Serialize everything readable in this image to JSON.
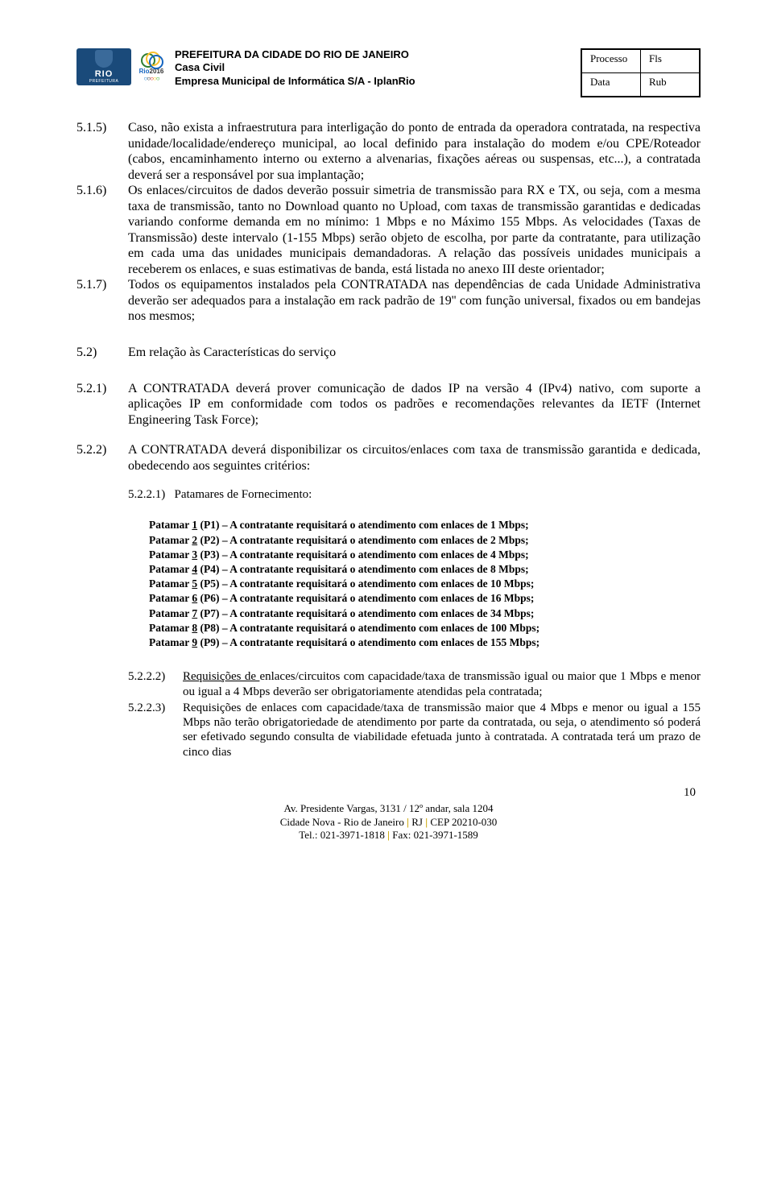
{
  "header": {
    "org1": "PREFEITURA DA CIDADE DO RIO DE JANEIRO",
    "org2": "Casa Civil",
    "org3": "Empresa Municipal de Informática S/A - IplanRio",
    "stamp": {
      "processo": "Processo",
      "fls": "Fls",
      "data": "Data",
      "rub": "Rub"
    },
    "logo_rio": {
      "text": "RIO",
      "sub": "PREFEITURA",
      "bg": "#1a4a7a"
    },
    "logo_olymp": {
      "year": "2016"
    }
  },
  "clauses": {
    "c515_num": "5.1.5)",
    "c515": "Caso, não exista a infraestrutura para interligação do ponto de entrada da operadora contratada, na respectiva unidade/localidade/endereço municipal, ao local definido para instalação do modem e/ou CPE/Roteador (cabos, encaminhamento interno ou externo a alvenarias, fixações aéreas ou suspensas, etc...), a contratada deverá ser a responsável por sua implantação;",
    "c516_num": "5.1.6)",
    "c516": "Os enlaces/circuitos de dados deverão possuir simetria de transmissão para RX e TX, ou seja, com a mesma taxa de transmissão, tanto no Download quanto no Upload, com taxas de transmissão garantidas e dedicadas variando conforme demanda em no mínimo: 1 Mbps e no Máximo 155 Mbps. As velocidades (Taxas de Transmissão) deste intervalo (1-155 Mbps) serão objeto de escolha, por parte da contratante, para utilização em cada uma das unidades municipais demandadoras. A relação das possíveis unidades municipais a receberem os enlaces, e suas estimativas de banda, está listada no anexo III deste orientador;",
    "c517_num": "5.1.7)",
    "c517": "Todos os equipamentos instalados pela CONTRATADA nas dependências de cada Unidade Administrativa deverão ser adequados para a instalação em rack padrão de 19'' com função universal, fixados ou em bandejas nos mesmos;"
  },
  "section52": {
    "num": "5.2)",
    "title": " Em relação às Características do serviço"
  },
  "sub521": {
    "num": "5.2.1)",
    "text": "A CONTRATADA deverá prover comunicação de dados IP na versão 4 (IPv4) nativo, com suporte a aplicações IP em conformidade com todos os padrões e recomendações relevantes da IETF (Internet Engineering Task Force);"
  },
  "sub522": {
    "num": "5.2.2)",
    "text": "A CONTRATADA deverá disponibilizar os circuitos/enlaces com taxa de transmissão garantida e dedicada, obedecendo aos seguintes critérios:"
  },
  "sub5221": {
    "label": "5.2.2.1)",
    "title": "Patamares de Fornecimento:"
  },
  "patamares": [
    {
      "n": "1",
      "p": "(P1)",
      "t": "A contratante requisitará o atendimento com enlaces de 1 Mbps;"
    },
    {
      "n": "2",
      "p": "(P2)",
      "t": "A contratante requisitará o atendimento com enlaces de 2 Mbps;"
    },
    {
      "n": "3",
      "p": "(P3)",
      "t": "A contratante requisitará o atendimento com enlaces de 4 Mbps;"
    },
    {
      "n": "4",
      "p": "(P4)",
      "t": "A contratante requisitará o atendimento com enlaces de 8 Mbps;"
    },
    {
      "n": "5",
      "p": "(P5)",
      "t": "A contratante requisitará o atendimento com enlaces de 10 Mbps;"
    },
    {
      "n": "6",
      "p": "(P6)",
      "t": "A contratante requisitará o atendimento com enlaces de 16 Mbps;"
    },
    {
      "n": "7",
      "p": "(P7)",
      "t": "A contratante requisitará o atendimento com enlaces de 34 Mbps;"
    },
    {
      "n": "8",
      "p": "(P8)",
      "t": "A contratante requisitará o atendimento com enlaces de 100 Mbps;"
    },
    {
      "n": "9",
      "p": "(P9)",
      "t": "A contratante requisitará o atendimento com enlaces de 155 Mbps;"
    }
  ],
  "req5222": {
    "num": "5.2.2.2)",
    "lead": "Requisições de ",
    "rest": "enlaces/circuitos com capacidade/taxa de transmissão igual ou maior que 1 Mbps e menor ou igual a 4 Mbps deverão ser obrigatoriamente atendidas pela contratada;"
  },
  "req5223": {
    "num": "5.2.2.3)",
    "text": "Requisições de enlaces com capacidade/taxa de transmissão maior que 4 Mbps e menor ou igual a 155 Mbps não terão obrigatoriedade de atendimento por parte da contratada, ou seja, o atendimento só poderá ser efetivado segundo consulta de viabilidade efetuada junto à contratada.  A contratada terá um prazo de cinco dias"
  },
  "footer": {
    "page": "10",
    "addr1": "Av. Presidente Vargas, 3131 / 12º andar, sala 1204",
    "addr2a": "Cidade Nova - Rio de Janeiro ",
    "addr2b": " RJ ",
    "addr2c": " CEP 20210-030",
    "tel": "Tel.: 021-3971-1818 ",
    "fax": " Fax: 021-3971-1589"
  }
}
